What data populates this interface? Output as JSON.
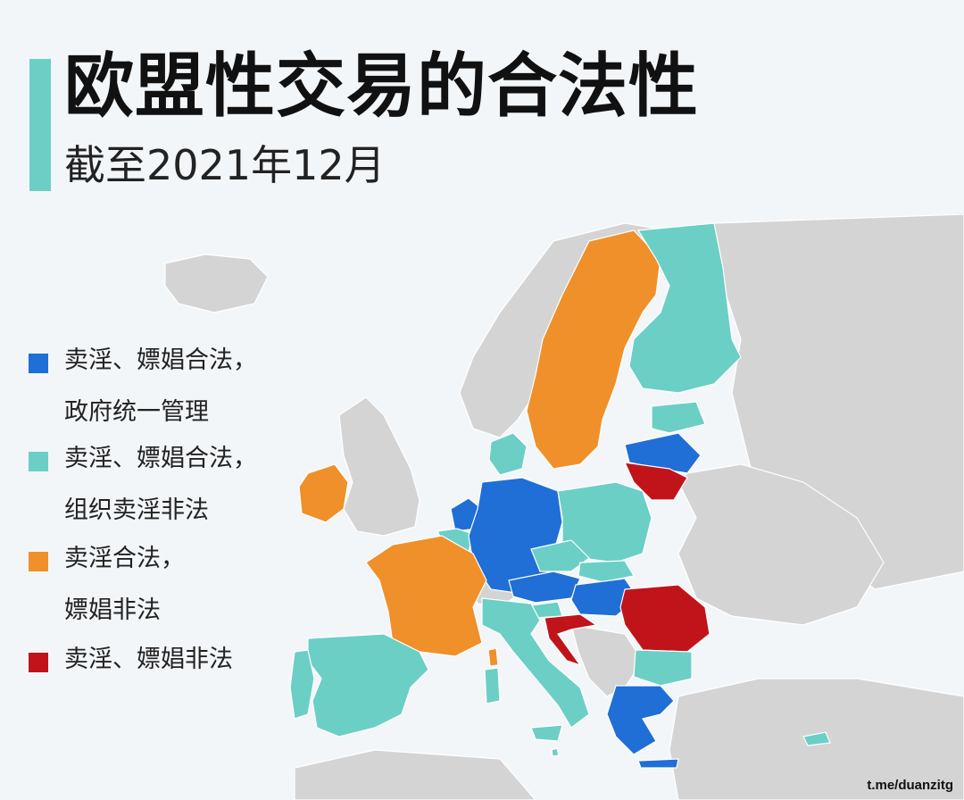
{
  "header": {
    "title": "欧盟性交易的合法性",
    "subtitle": "截至2021年12月"
  },
  "colors": {
    "accent": "#6bcfc6",
    "regulated": "#1f6fd6",
    "legal_org_illegal": "#6bcfc6",
    "selling_legal": "#f0902a",
    "illegal": "#c0141a",
    "non_eu": "#d4d4d4",
    "sea": "#f3f6f9"
  },
  "legend": {
    "items": [
      {
        "key": "regulated",
        "color": "#1f6fd6",
        "line1": "卖淫、嫖娼合法，",
        "line2": "政府统一管理"
      },
      {
        "key": "legal_org_illegal",
        "color": "#6bcfc6",
        "line1": "卖淫、嫖娼合法，",
        "line2": "组织卖淫非法"
      },
      {
        "key": "selling_legal",
        "color": "#f0902a",
        "line1": "卖淫合法，",
        "line2": "嫖娼非法"
      },
      {
        "key": "illegal",
        "color": "#c0141a",
        "line1": "卖淫、嫖娼非法",
        "line2": ""
      }
    ]
  },
  "map": {
    "regions": [
      {
        "id": "sweden",
        "category": "selling_legal"
      },
      {
        "id": "finland",
        "category": "legal_org_illegal"
      },
      {
        "id": "estonia",
        "category": "legal_org_illegal"
      },
      {
        "id": "latvia",
        "category": "regulated"
      },
      {
        "id": "lithuania",
        "category": "illegal"
      },
      {
        "id": "denmark",
        "category": "legal_org_illegal"
      },
      {
        "id": "ireland",
        "category": "selling_legal"
      },
      {
        "id": "netherlands",
        "category": "regulated"
      },
      {
        "id": "belgium",
        "category": "legal_org_illegal"
      },
      {
        "id": "luxembourg",
        "category": "legal_org_illegal"
      },
      {
        "id": "germany",
        "category": "regulated"
      },
      {
        "id": "poland",
        "category": "legal_org_illegal"
      },
      {
        "id": "czechia",
        "category": "legal_org_illegal"
      },
      {
        "id": "slovakia",
        "category": "legal_org_illegal"
      },
      {
        "id": "austria",
        "category": "regulated"
      },
      {
        "id": "hungary",
        "category": "regulated"
      },
      {
        "id": "slovenia",
        "category": "legal_org_illegal"
      },
      {
        "id": "croatia",
        "category": "illegal"
      },
      {
        "id": "romania",
        "category": "illegal"
      },
      {
        "id": "bulgaria",
        "category": "legal_org_illegal"
      },
      {
        "id": "greece",
        "category": "regulated"
      },
      {
        "id": "cyprus",
        "category": "legal_org_illegal"
      },
      {
        "id": "malta",
        "category": "legal_org_illegal"
      },
      {
        "id": "france",
        "category": "selling_legal"
      },
      {
        "id": "italy",
        "category": "legal_org_illegal"
      },
      {
        "id": "spain",
        "category": "legal_org_illegal"
      },
      {
        "id": "portugal",
        "category": "legal_org_illegal"
      }
    ]
  },
  "footer": {
    "credit": "t.me/duanzitg"
  }
}
